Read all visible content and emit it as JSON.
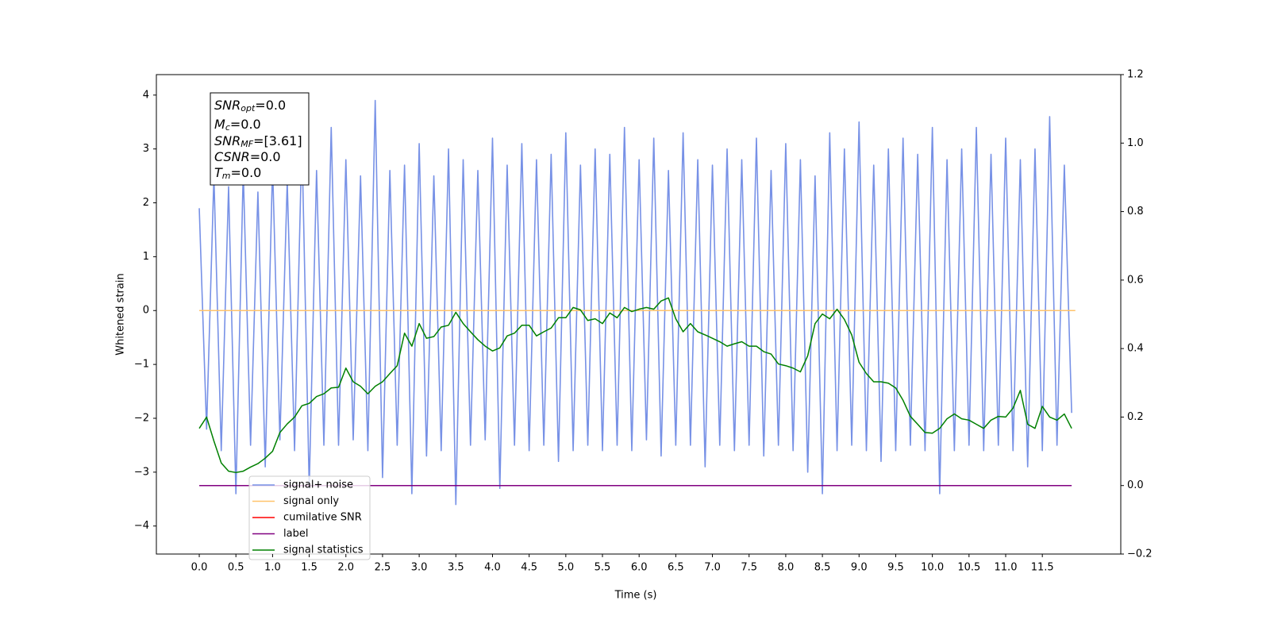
{
  "chart_data": {
    "type": "line",
    "x_label": "Time (s)",
    "y_label": "Whitened strain",
    "xlim": [
      -0.585,
      12.57
    ],
    "ylim": [
      -4.52,
      4.38
    ],
    "y2lim": [
      -0.2,
      1.2
    ],
    "xticks": [
      {
        "value": 0,
        "label": "0.0"
      },
      {
        "value": 0.5,
        "label": "0.5"
      },
      {
        "value": 1,
        "label": "1.0"
      },
      {
        "value": 1.5,
        "label": "1.5"
      },
      {
        "value": 2,
        "label": "2.0"
      },
      {
        "value": 2.5,
        "label": "2.5"
      },
      {
        "value": 3,
        "label": "3.0"
      },
      {
        "value": 3.5,
        "label": "3.5"
      },
      {
        "value": 4,
        "label": "4.0"
      },
      {
        "value": 4.5,
        "label": "4.5"
      },
      {
        "value": 5,
        "label": "5.0"
      },
      {
        "value": 5.5,
        "label": "5.5"
      },
      {
        "value": 6,
        "label": "6.0"
      },
      {
        "value": 6.5,
        "label": "6.5"
      },
      {
        "value": 7,
        "label": "7.0"
      },
      {
        "value": 7.5,
        "label": "7.5"
      },
      {
        "value": 8,
        "label": "8.0"
      },
      {
        "value": 8.5,
        "label": "8.5"
      },
      {
        "value": 9,
        "label": "9.0"
      },
      {
        "value": 9.5,
        "label": "9.5"
      },
      {
        "value": 10,
        "label": "10.0"
      },
      {
        "value": 10.5,
        "label": "10.5"
      },
      {
        "value": 11,
        "label": "11.0"
      },
      {
        "value": 11.5,
        "label": "11.5"
      }
    ],
    "yticks": [
      {
        "value": -4,
        "label": "−4"
      },
      {
        "value": -3,
        "label": "−3"
      },
      {
        "value": -2,
        "label": "−2"
      },
      {
        "value": -1,
        "label": "−1"
      },
      0,
      1,
      2,
      3,
      4
    ],
    "y2ticks": [
      {
        "value": -0.2,
        "label": "−0.2"
      },
      {
        "value": 0,
        "label": "0.0"
      },
      0.2,
      0.4,
      0.6,
      0.8,
      {
        "value": 1,
        "label": "1.0"
      },
      1.2
    ],
    "legend": "lower left",
    "annotation": [
      {
        "main": "SNR",
        "sub": "opt",
        "rest": "=0.0"
      },
      {
        "main": "M",
        "sub": "c",
        "rest": "=0.0"
      },
      {
        "main": "SNR",
        "sub": "MF",
        "rest": "=[3.61]"
      },
      {
        "main": "CSNR",
        "rest": "=0.0"
      },
      {
        "main": "T",
        "sub": "m",
        "rest": "=0.0"
      }
    ],
    "x": [
      0,
      0.1,
      0.2,
      0.3,
      0.4,
      0.5,
      0.6,
      0.7,
      0.8,
      0.9,
      1,
      1.1,
      1.2,
      1.3,
      1.4,
      1.5,
      1.6,
      1.7,
      1.8,
      1.9,
      2,
      2.1,
      2.2,
      2.3,
      2.4,
      2.5,
      2.6,
      2.7,
      2.8,
      2.9,
      3,
      3.1,
      3.2,
      3.3,
      3.4,
      3.5,
      3.6,
      3.7,
      3.8,
      3.9,
      4,
      4.1,
      4.2,
      4.3,
      4.4,
      4.5,
      4.6,
      4.7,
      4.8,
      4.9,
      5,
      5.1,
      5.2,
      5.3,
      5.4,
      5.5,
      5.6,
      5.7,
      5.8,
      5.9,
      6,
      6.1,
      6.2,
      6.3,
      6.4,
      6.5,
      6.6,
      6.7,
      6.8,
      6.9,
      7,
      7.1,
      7.2,
      7.3,
      7.4,
      7.5,
      7.6,
      7.7,
      7.8,
      7.9,
      8,
      8.1,
      8.2,
      8.3,
      8.4,
      8.5,
      8.6,
      8.7,
      8.8,
      8.9,
      9,
      9.1,
      9.2,
      9.3,
      9.4,
      9.5,
      9.6,
      9.7,
      9.8,
      9.9,
      10,
      10.1,
      10.2,
      10.3,
      10.4,
      10.5,
      10.6,
      10.7,
      10.8,
      10.9,
      11,
      11.1,
      11.2,
      11.3,
      11.4,
      11.5,
      11.6,
      11.7,
      11.8,
      11.9
    ],
    "series": [
      {
        "name": "signal+ noise",
        "color": "#7791e6",
        "values": [
          1.9,
          -2.2,
          2.5,
          -2.6,
          2.3,
          -3.4,
          2.6,
          -2.5,
          2.2,
          -2.9,
          2.7,
          -2.4,
          2.4,
          -2.6,
          3.2,
          -3.3,
          2.6,
          -2.5,
          3.4,
          -2.5,
          2.8,
          -2.4,
          2.5,
          -2.6,
          3.9,
          -3.1,
          2.6,
          -2.5,
          2.7,
          -3.4,
          3.1,
          -2.7,
          2.5,
          -2.6,
          3.0,
          -3.6,
          2.8,
          -2.5,
          2.6,
          -2.4,
          3.2,
          -3.3,
          2.7,
          -2.5,
          3.1,
          -2.6,
          2.8,
          -2.5,
          2.9,
          -2.8,
          3.3,
          -2.6,
          2.7,
          -2.5,
          3.0,
          -2.6,
          2.9,
          -2.5,
          3.4,
          -2.6,
          2.8,
          -2.4,
          3.2,
          -2.7,
          2.6,
          -2.5,
          3.3,
          -2.5,
          2.8,
          -2.9,
          2.7,
          -2.5,
          3.0,
          -2.6,
          2.8,
          -2.5,
          3.2,
          -2.7,
          2.6,
          -2.5,
          3.1,
          -2.6,
          2.8,
          -3.0,
          2.5,
          -3.4,
          3.3,
          -2.6,
          3.0,
          -2.5,
          3.5,
          -2.6,
          2.7,
          -2.8,
          3.0,
          -2.6,
          3.2,
          -2.5,
          2.9,
          -2.6,
          3.4,
          -3.4,
          2.8,
          -2.6,
          3.0,
          -2.5,
          3.4,
          -2.6,
          2.9,
          -2.5,
          3.2,
          -2.6,
          2.8,
          -2.9,
          3.0,
          -2.6,
          3.6,
          -2.5,
          2.7,
          -1.9
        ]
      },
      {
        "name": "signal only",
        "color": "#ffc36b",
        "x": [
          0,
          11.95
        ],
        "values": [
          0,
          0
        ]
      },
      {
        "name": "cumilative SNR",
        "color": "#ff0000"
      },
      {
        "name": "label",
        "color": "#800080",
        "axis": "y2",
        "x": [
          0,
          11.9
        ],
        "values": [
          0,
          0
        ]
      },
      {
        "name": "signal statistics",
        "color": "#008000",
        "axis": "y2",
        "values": [
          0.167,
          0.2,
          0.13,
          0.066,
          0.042,
          0.038,
          0.042,
          0.054,
          0.064,
          0.08,
          0.1,
          0.155,
          0.18,
          0.2,
          0.233,
          0.24,
          0.26,
          0.268,
          0.285,
          0.287,
          0.343,
          0.303,
          0.29,
          0.268,
          0.29,
          0.303,
          0.327,
          0.35,
          0.445,
          0.407,
          0.473,
          0.43,
          0.435,
          0.463,
          0.468,
          0.506,
          0.473,
          0.449,
          0.426,
          0.407,
          0.393,
          0.402,
          0.437,
          0.445,
          0.468,
          0.468,
          0.437,
          0.449,
          0.46,
          0.49,
          0.49,
          0.52,
          0.513,
          0.482,
          0.487,
          0.473,
          0.504,
          0.49,
          0.52,
          0.508,
          0.515,
          0.52,
          0.515,
          0.539,
          0.548,
          0.487,
          0.449,
          0.473,
          0.449,
          0.44,
          0.43,
          0.42,
          0.407,
          0.414,
          0.42,
          0.407,
          0.407,
          0.391,
          0.384,
          0.355,
          0.35,
          0.343,
          0.332,
          0.379,
          0.473,
          0.501,
          0.487,
          0.515,
          0.485,
          0.44,
          0.36,
          0.327,
          0.303,
          0.303,
          0.299,
          0.285,
          0.249,
          0.202,
          0.179,
          0.155,
          0.153,
          0.167,
          0.195,
          0.209,
          0.195,
          0.191,
          0.179,
          0.167,
          0.191,
          0.202,
          0.2,
          0.226,
          0.278,
          0.179,
          0.167,
          0.231,
          0.2,
          0.191,
          0.209,
          0.167
        ]
      }
    ]
  }
}
